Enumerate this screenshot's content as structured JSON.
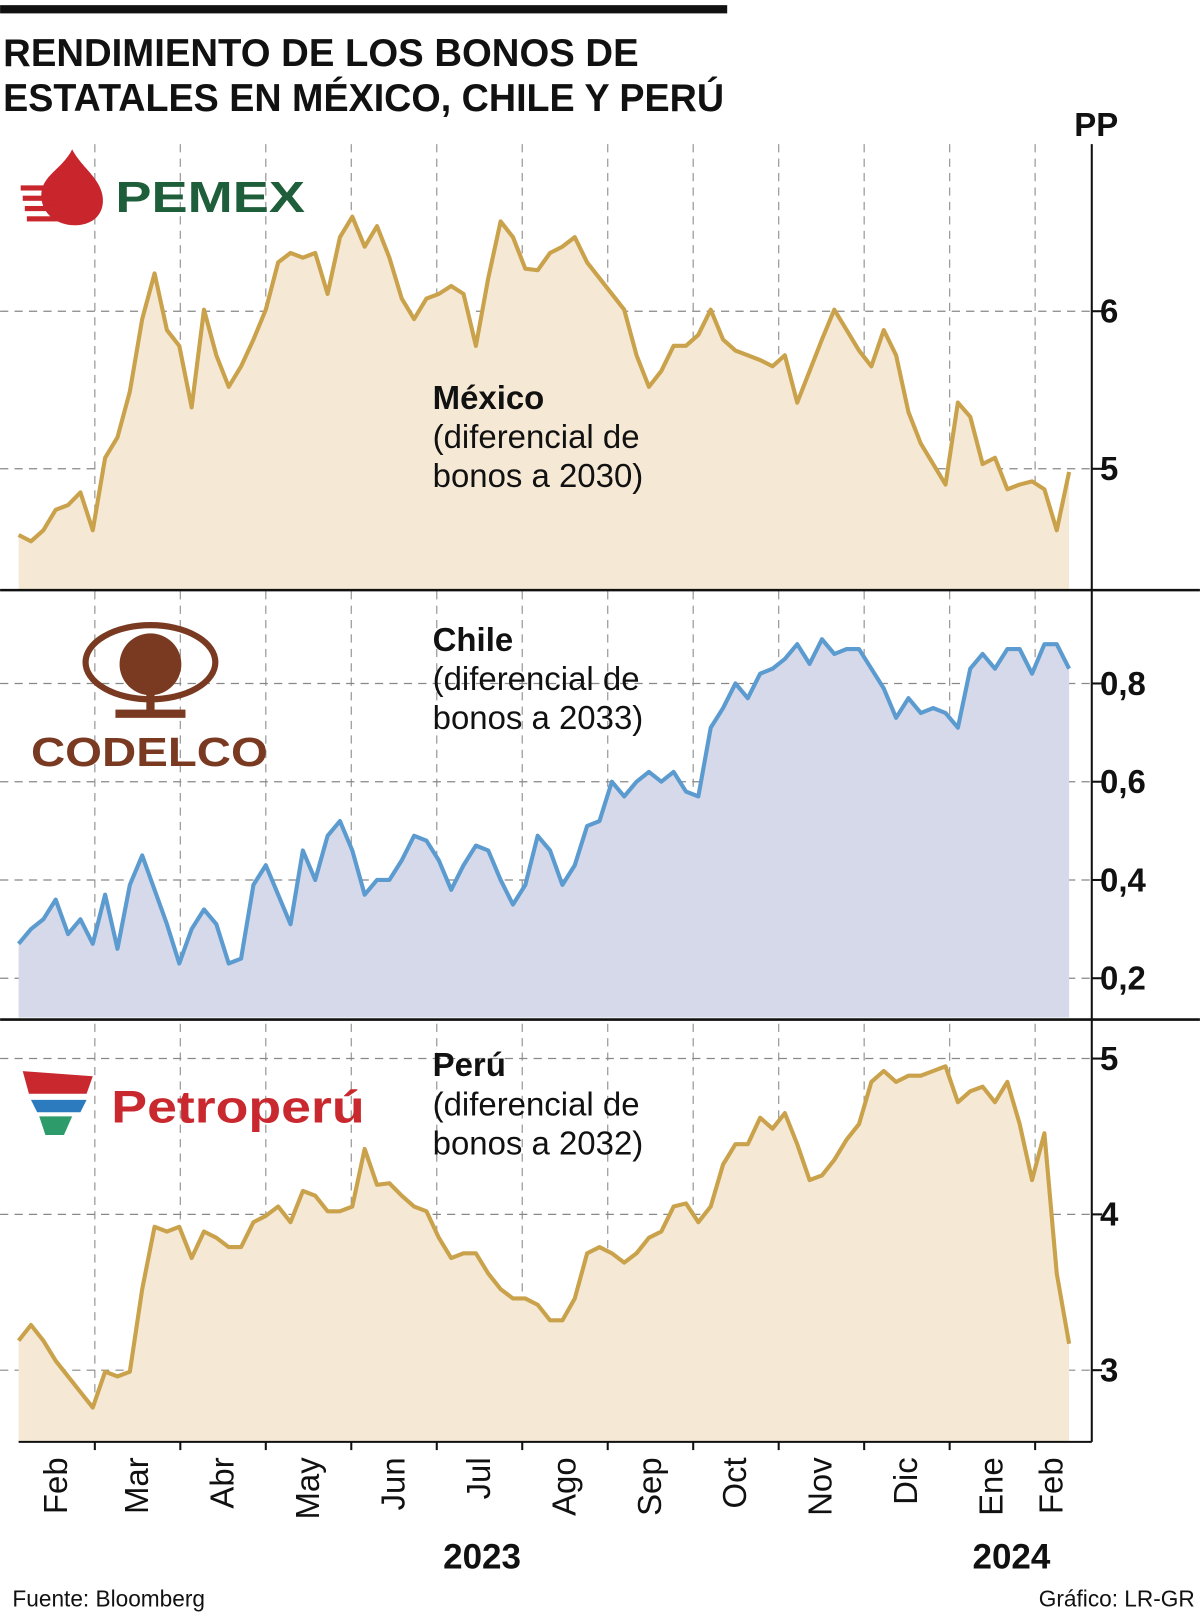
{
  "title": [
    "RENDIMIENTO DE LOS BONOS DE",
    "ESTATALES EN MÉXICO, CHILE Y PERÚ"
  ],
  "unit": "PP",
  "x_axis": {
    "categories": [
      "Feb",
      "Mar",
      "Abr",
      "May",
      "Jun",
      "Jul",
      "Ago",
      "Sep",
      "Oct",
      "Nov",
      "Dic",
      "Ene",
      "Feb"
    ],
    "years": [
      "2023",
      "2024"
    ]
  },
  "source": "Fuente: Bloomberg",
  "credit": "Gráfico: LR-GR",
  "chart_data": [
    {
      "type": "area",
      "brand": "PEMEX",
      "annotation": [
        "(diferencial de",
        "bonos a 2030)"
      ],
      "series": [
        {
          "name": "México",
          "color": "#c9a24b",
          "fill": "#f5e9d5",
          "values": [
            4.58,
            4.54,
            4.61,
            4.74,
            4.77,
            4.85,
            4.61,
            5.07,
            5.2,
            5.49,
            5.95,
            6.24,
            5.88,
            5.78,
            5.39,
            6.01,
            5.72,
            5.52,
            5.65,
            5.82,
            6.01,
            6.31,
            6.37,
            6.34,
            6.37,
            6.11,
            6.47,
            6.6,
            6.41,
            6.54,
            6.34,
            6.08,
            5.95,
            6.08,
            6.11,
            6.16,
            6.11,
            5.78,
            6.21,
            6.57,
            6.47,
            6.27,
            6.26,
            6.37,
            6.41,
            6.47,
            6.31,
            6.21,
            6.11,
            6.01,
            5.72,
            5.52,
            5.62,
            5.78,
            5.78,
            5.85,
            6.01,
            5.82,
            5.75,
            5.72,
            5.69,
            5.65,
            5.72,
            5.42,
            5.62,
            5.82,
            6.01,
            5.88,
            5.75,
            5.65,
            5.88,
            5.72,
            5.36,
            5.16,
            5.03,
            4.9,
            5.42,
            5.33,
            5.03,
            5.07,
            4.87,
            4.9,
            4.92,
            4.87,
            4.61,
            4.98
          ]
        }
      ],
      "ylim": [
        4.23,
        7.06
      ],
      "yticks": [
        5,
        6
      ],
      "grid": true
    },
    {
      "type": "area",
      "brand": "CODELCO",
      "annotation": [
        "(diferencial de",
        "bonos a 2033)"
      ],
      "series": [
        {
          "name": "Chile",
          "color": "#5b9bd0",
          "fill": "#d5d9e9",
          "values": [
            0.27,
            0.3,
            0.32,
            0.36,
            0.29,
            0.32,
            0.27,
            0.37,
            0.26,
            0.39,
            0.45,
            0.38,
            0.31,
            0.23,
            0.3,
            0.34,
            0.31,
            0.23,
            0.24,
            0.39,
            0.43,
            0.37,
            0.31,
            0.46,
            0.4,
            0.49,
            0.52,
            0.46,
            0.37,
            0.4,
            0.4,
            0.44,
            0.49,
            0.48,
            0.44,
            0.38,
            0.43,
            0.47,
            0.46,
            0.4,
            0.35,
            0.39,
            0.49,
            0.46,
            0.39,
            0.43,
            0.51,
            0.52,
            0.6,
            0.57,
            0.6,
            0.62,
            0.6,
            0.62,
            0.58,
            0.57,
            0.71,
            0.75,
            0.8,
            0.77,
            0.82,
            0.83,
            0.85,
            0.88,
            0.84,
            0.89,
            0.86,
            0.87,
            0.87,
            0.83,
            0.79,
            0.73,
            0.77,
            0.74,
            0.75,
            0.74,
            0.71,
            0.83,
            0.86,
            0.83,
            0.87,
            0.87,
            0.82,
            0.88,
            0.88,
            0.83
          ]
        }
      ],
      "ylim": [
        0.12,
        0.99
      ],
      "yticks": [
        {
          "value": 0.2,
          "label": "0,2"
        },
        {
          "value": 0.4,
          "label": "0,4"
        },
        {
          "value": 0.6,
          "label": "0,6"
        },
        {
          "value": 0.8,
          "label": "0,8"
        }
      ],
      "grid": true
    },
    {
      "type": "area",
      "brand": "Petroperú",
      "annotation": [
        "(diferencial de",
        "bonos a 2032)"
      ],
      "series": [
        {
          "name": "Perú",
          "color": "#c9a24b",
          "fill": "#f5e9d5",
          "values": [
            3.19,
            3.29,
            3.19,
            3.06,
            2.96,
            2.86,
            2.76,
            2.99,
            2.96,
            2.99,
            3.52,
            3.92,
            3.89,
            3.92,
            3.72,
            3.89,
            3.85,
            3.79,
            3.79,
            3.95,
            3.99,
            4.05,
            3.95,
            4.15,
            4.12,
            4.02,
            4.02,
            4.05,
            4.42,
            4.19,
            4.2,
            4.12,
            4.05,
            4.02,
            3.85,
            3.72,
            3.75,
            3.75,
            3.62,
            3.52,
            3.46,
            3.46,
            3.42,
            3.32,
            3.32,
            3.46,
            3.75,
            3.79,
            3.75,
            3.69,
            3.75,
            3.85,
            3.89,
            4.05,
            4.07,
            3.95,
            4.05,
            4.32,
            4.45,
            4.45,
            4.62,
            4.55,
            4.65,
            4.45,
            4.22,
            4.25,
            4.35,
            4.48,
            4.58,
            4.85,
            4.92,
            4.85,
            4.89,
            4.89,
            4.92,
            4.95,
            4.72,
            4.79,
            4.82,
            4.72,
            4.85,
            4.58,
            4.22,
            4.52,
            3.62,
            3.17
          ]
        }
      ],
      "ylim": [
        2.54,
        5.25
      ],
      "yticks": [
        3,
        4,
        5
      ],
      "grid": true
    }
  ]
}
